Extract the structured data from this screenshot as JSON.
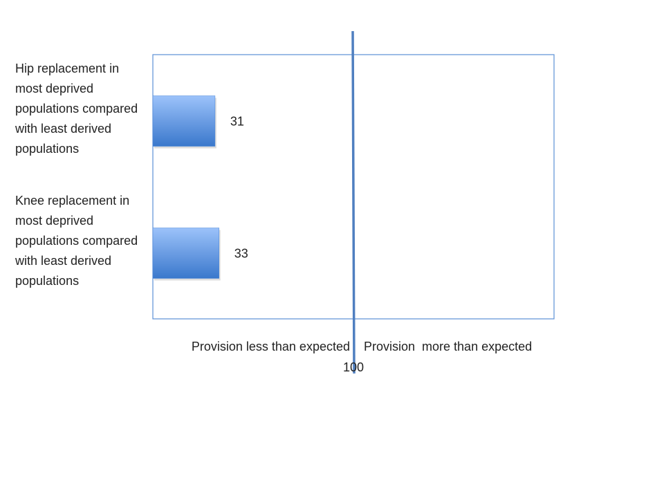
{
  "chart_data": {
    "type": "bar",
    "orientation": "horizontal",
    "categories": [
      "Hip replacement in most deprived populations compared with least derived populations",
      "Knee replacement in most deprived populations compared with least derived populations"
    ],
    "values": [
      31,
      33
    ],
    "color": "#4a86d8",
    "xlim": [
      0,
      200
    ],
    "xticks": [
      100
    ],
    "reference_line_color": "#4f7fc0",
    "annotations": [
      "Provision less than expected",
      "Provision  more than expected"
    ]
  }
}
